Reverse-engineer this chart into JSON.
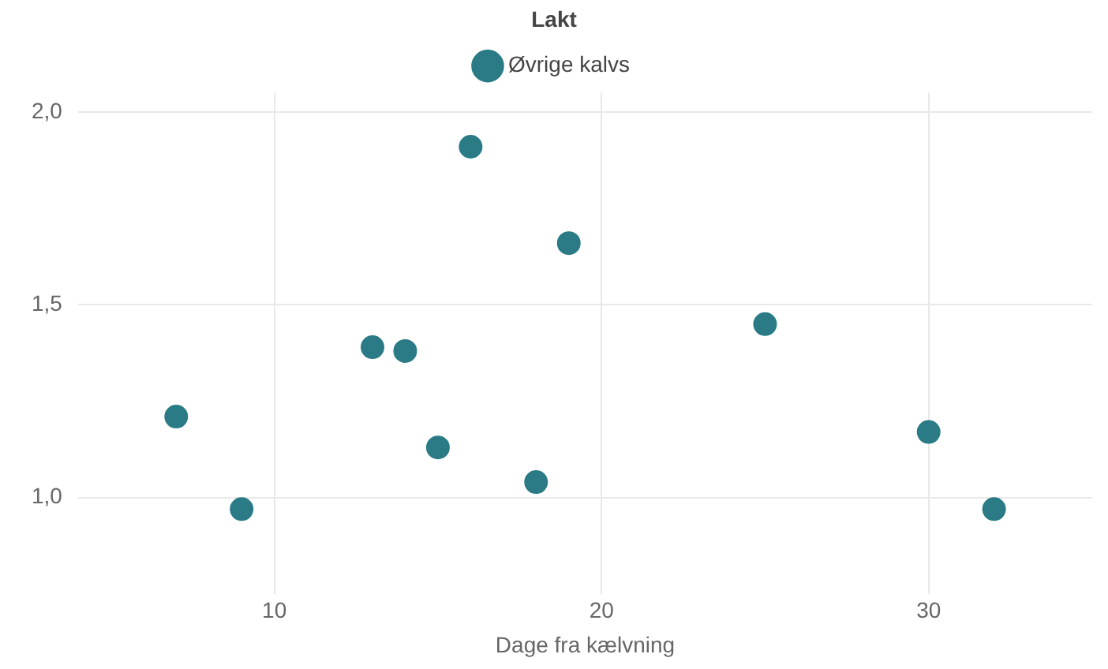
{
  "chart_data": {
    "type": "scatter",
    "legend_title": "Lakt",
    "xlabel": "Dage fra kælvning",
    "series": [
      {
        "name": "Øvrige kalvs",
        "color": "#2a7b86",
        "x": [
          7,
          9,
          13,
          14,
          15,
          16,
          18,
          19,
          25,
          30,
          32
        ],
        "values": [
          1.21,
          0.97,
          1.39,
          1.38,
          1.13,
          1.91,
          1.04,
          1.66,
          1.45,
          1.17,
          0.97
        ]
      }
    ],
    "xlim": [
      4,
      35
    ],
    "xticks": [
      10,
      20,
      30
    ],
    "ylim": [
      0.75,
      2.05
    ],
    "yticks": [
      {
        "value": 1,
        "label": "1,0"
      },
      {
        "value": 1.5,
        "label": "1,5"
      },
      {
        "value": 2,
        "label": "2,0"
      }
    ],
    "grid": true,
    "legend": "top",
    "marker": "circle"
  }
}
